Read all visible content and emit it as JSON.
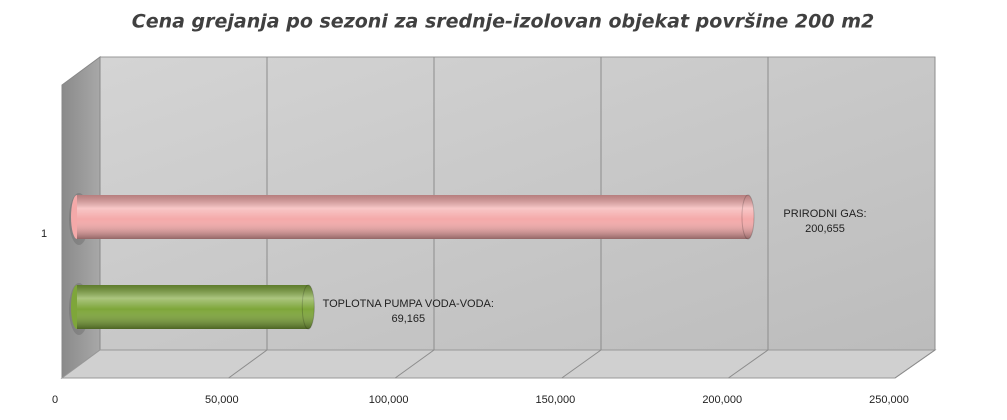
{
  "chart_data": {
    "type": "bar3d",
    "title": "Cena grejanja po sezoni za srednje-izolovan objekat površine 200 m2",
    "categories": [
      "1"
    ],
    "series": [
      {
        "name": "PRIRODNI GAS:",
        "color": "#f4a9a9",
        "values": [
          200655
        ],
        "value_labels": [
          "200,655"
        ]
      },
      {
        "name": "TOPLOTNA PUMPA  VODA-VODA:",
        "color": "#7ea63a",
        "values": [
          69165
        ],
        "value_labels": [
          "69,165"
        ]
      }
    ],
    "xlim": [
      0,
      250000
    ],
    "xticks": [
      0,
      {
        "value": 50000,
        "label": "50,000"
      },
      {
        "value": 100000,
        "label": "100,000"
      },
      {
        "value": 150000,
        "label": "150,000"
      },
      {
        "value": 200000,
        "label": "200,000"
      },
      {
        "value": 250000,
        "label": "250,000"
      }
    ],
    "grid": true
  }
}
